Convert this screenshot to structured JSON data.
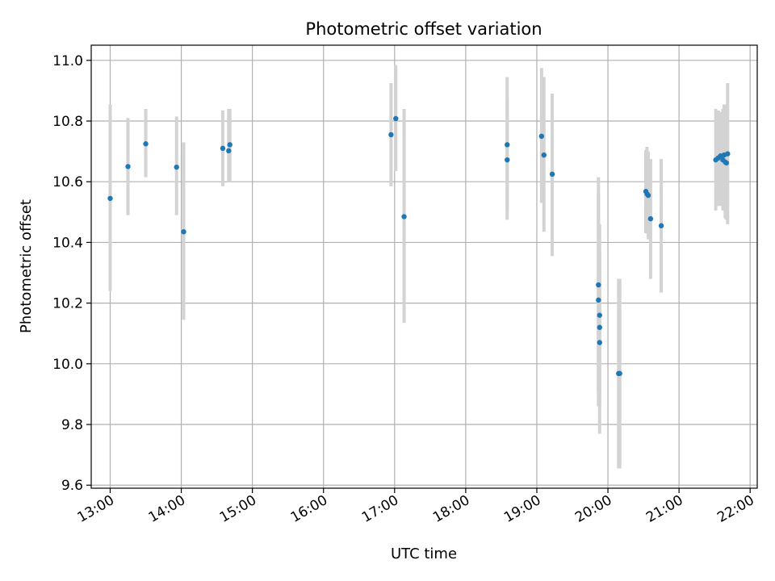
{
  "chart_data": {
    "type": "scatter",
    "title": "Photometric offset variation",
    "xlabel": "UTC time",
    "ylabel": "Photometric offset",
    "x_tick_labels": [
      "13:00",
      "14:00",
      "15:00",
      "16:00",
      "17:00",
      "18:00",
      "19:00",
      "20:00",
      "21:00",
      "22:00"
    ],
    "y_tick_labels": [
      "9.6",
      "9.8",
      "10.0",
      "10.2",
      "10.4",
      "10.6",
      "10.8",
      "11.0"
    ],
    "xlim": [
      "12:44",
      "22:06"
    ],
    "ylim": [
      9.59,
      11.05
    ],
    "grid": true,
    "colors": {
      "points": "#1f77b4",
      "error_bars": "#d3d3d3",
      "grid": "#b0b0b0"
    },
    "points": [
      {
        "x": "13:00",
        "y": 10.545,
        "yerr_low": 10.24,
        "yerr_high": 10.855
      },
      {
        "x": "13:15",
        "y": 10.65,
        "yerr_low": 10.49,
        "yerr_high": 10.81
      },
      {
        "x": "13:30",
        "y": 10.725,
        "yerr_low": 10.615,
        "yerr_high": 10.84
      },
      {
        "x": "13:56",
        "y": 10.648,
        "yerr_low": 10.49,
        "yerr_high": 10.815
      },
      {
        "x": "14:02",
        "y": 10.435,
        "yerr_low": 10.145,
        "yerr_high": 10.73
      },
      {
        "x": "14:35",
        "y": 10.71,
        "yerr_low": 10.585,
        "yerr_high": 10.835
      },
      {
        "x": "14:40",
        "y": 10.702,
        "yerr_low": 10.6,
        "yerr_high": 10.84
      },
      {
        "x": "14:41",
        "y": 10.722,
        "yerr_low": 10.6,
        "yerr_high": 10.84
      },
      {
        "x": "16:57",
        "y": 10.755,
        "yerr_low": 10.585,
        "yerr_high": 10.925
      },
      {
        "x": "17:01",
        "y": 10.808,
        "yerr_low": 10.635,
        "yerr_high": 10.985
      },
      {
        "x": "17:08",
        "y": 10.485,
        "yerr_low": 10.135,
        "yerr_high": 10.84
      },
      {
        "x": "18:35",
        "y": 10.672,
        "yerr_low": 10.475,
        "yerr_high": 10.87
      },
      {
        "x": "18:35",
        "y": 10.722,
        "yerr_low": 10.51,
        "yerr_high": 10.945
      },
      {
        "x": "19:04",
        "y": 10.75,
        "yerr_low": 10.53,
        "yerr_high": 10.975
      },
      {
        "x": "19:06",
        "y": 10.688,
        "yerr_low": 10.435,
        "yerr_high": 10.945
      },
      {
        "x": "19:13",
        "y": 10.625,
        "yerr_low": 10.355,
        "yerr_high": 10.89
      },
      {
        "x": "19:52",
        "y": 10.26,
        "yerr_low": 9.91,
        "yerr_high": 10.615
      },
      {
        "x": "19:52",
        "y": 10.21,
        "yerr_low": 9.86,
        "yerr_high": 10.56
      },
      {
        "x": "19:53",
        "y": 10.16,
        "yerr_low": 9.86,
        "yerr_high": 10.46
      },
      {
        "x": "19:53",
        "y": 10.12,
        "yerr_low": 9.87,
        "yerr_high": 10.37
      },
      {
        "x": "19:53",
        "y": 10.07,
        "yerr_low": 9.77,
        "yerr_high": 10.37
      },
      {
        "x": "20:09",
        "y": 9.968,
        "yerr_low": 9.655,
        "yerr_high": 10.28
      },
      {
        "x": "20:10",
        "y": 9.968,
        "yerr_low": 9.655,
        "yerr_high": 10.28
      },
      {
        "x": "20:32",
        "y": 10.568,
        "yerr_low": 10.43,
        "yerr_high": 10.705
      },
      {
        "x": "20:33",
        "y": 10.56,
        "yerr_low": 10.44,
        "yerr_high": 10.715
      },
      {
        "x": "20:34",
        "y": 10.555,
        "yerr_low": 10.41,
        "yerr_high": 10.7
      },
      {
        "x": "20:36",
        "y": 10.478,
        "yerr_low": 10.28,
        "yerr_high": 10.675
      },
      {
        "x": "20:45",
        "y": 10.455,
        "yerr_low": 10.235,
        "yerr_high": 10.675
      },
      {
        "x": "21:31",
        "y": 10.672,
        "yerr_low": 10.505,
        "yerr_high": 10.84
      },
      {
        "x": "21:33",
        "y": 10.678,
        "yerr_low": 10.52,
        "yerr_high": 10.835
      },
      {
        "x": "21:35",
        "y": 10.685,
        "yerr_low": 10.52,
        "yerr_high": 10.83
      },
      {
        "x": "21:37",
        "y": 10.672,
        "yerr_low": 10.505,
        "yerr_high": 10.84
      },
      {
        "x": "21:38",
        "y": 10.688,
        "yerr_low": 10.52,
        "yerr_high": 10.855
      },
      {
        "x": "21:39",
        "y": 10.665,
        "yerr_low": 10.48,
        "yerr_high": 10.85
      },
      {
        "x": "21:40",
        "y": 10.662,
        "yerr_low": 10.475,
        "yerr_high": 10.855
      },
      {
        "x": "21:41",
        "y": 10.692,
        "yerr_low": 10.46,
        "yerr_high": 10.925
      }
    ]
  }
}
